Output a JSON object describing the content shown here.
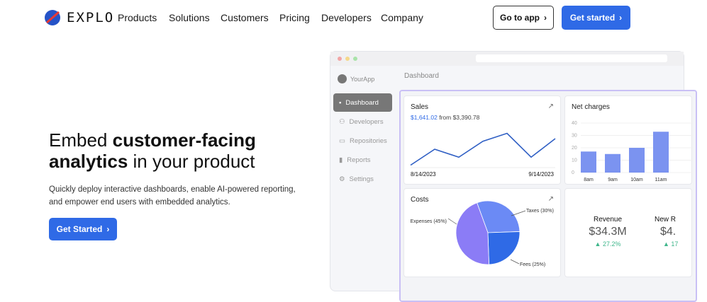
{
  "brand": {
    "name": "EXPLO"
  },
  "nav": {
    "items": [
      "Products",
      "Solutions",
      "Customers",
      "Pricing",
      "Developers",
      "Company"
    ],
    "go_to_app": "Go to app",
    "get_started": "Get started"
  },
  "hero": {
    "title_pre": "Embed ",
    "title_bold1": "customer-facing",
    "title_bold2": "analytics",
    "title_post": " in your product",
    "subtitle_line1": "Quickly deploy interactive dashboards, enable AI-powered reporting,",
    "subtitle_line2": "and empower end users with embedded analytics.",
    "cta": "Get Started"
  },
  "app": {
    "name": "YourApp",
    "header": "Dashboard",
    "sidebar": [
      {
        "label": "Dashboard",
        "icon": "grid-icon",
        "active": true
      },
      {
        "label": "Developers",
        "icon": "users-icon"
      },
      {
        "label": "Repositories",
        "icon": "folder-icon"
      },
      {
        "label": "Reports",
        "icon": "bar-chart-icon"
      },
      {
        "label": "Settings",
        "icon": "gear-icon"
      }
    ]
  },
  "sales": {
    "title": "Sales",
    "value": "$1,641.02",
    "from": "from $3,390.78",
    "start_date": "8/14/2023",
    "end_date": "9/14/2023",
    "points": [
      1,
      4,
      2.5,
      5.5,
      7,
      2.5,
      6
    ]
  },
  "net_charges": {
    "title": "Net charges",
    "y_ticks": [
      "40",
      "30",
      "20",
      "10",
      "0"
    ],
    "categories": [
      "8am",
      "9am",
      "10am",
      "11am"
    ],
    "values": [
      17,
      15,
      20,
      33
    ],
    "ymax": 40,
    "color": "#7b93f0"
  },
  "costs": {
    "title": "Costs",
    "slices": [
      {
        "label": "Taxes (30%)",
        "value": 30,
        "color": "#6b8af5"
      },
      {
        "label": "Fees (25%)",
        "value": 25,
        "color": "#2f6ae6"
      },
      {
        "label": "Expenses (45%)",
        "value": 45,
        "color": "#8b7cf6"
      }
    ]
  },
  "kpis": [
    {
      "label": "Revenue",
      "value": "$34.3M",
      "change": "27.2%"
    },
    {
      "label": "New R",
      "value": "$4.",
      "change": "17"
    }
  ],
  "colors": {
    "accent": "#2f6ae6",
    "positive": "#3fb68b"
  }
}
